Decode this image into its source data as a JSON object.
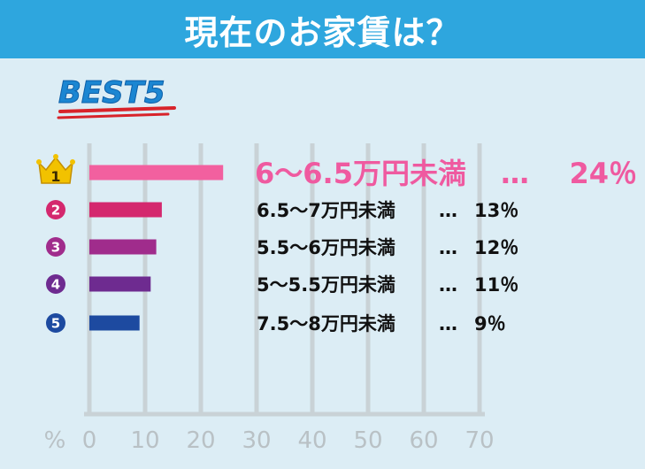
{
  "title": "現在のお家賃は？",
  "badge": "BEST5",
  "colors": {
    "header": "#2ea6de",
    "panel": "#dcedf5",
    "grid": "#c9d2d6",
    "badge_text": "#1b86d2",
    "badge_underline": "#d8232a",
    "crown": "#f2c200",
    "rank1_text": "#ef5aa0"
  },
  "chart_data": {
    "type": "bar",
    "orientation": "horizontal",
    "unit_label": "%",
    "xlim": [
      0,
      70
    ],
    "x_ticks": [
      0,
      10,
      20,
      30,
      40,
      50,
      60,
      70
    ],
    "grid": true,
    "categories": [
      "6～6.5万円未満",
      "6.5～7万円未満",
      "5.5～6万円未満",
      "5～5.5万円未満",
      "7.5～8万円未満"
    ],
    "values": [
      24,
      13,
      12,
      11,
      9
    ],
    "ranks": [
      "1",
      "2",
      "3",
      "4",
      "5"
    ],
    "bar_colors": [
      "#f2609f",
      "#d4286e",
      "#a02c8c",
      "#6e2b90",
      "#1d4aa0"
    ],
    "labels": [
      {
        "category": "6～6.5万円未満",
        "sep": "…",
        "value": "24％"
      },
      {
        "category": "6.5～7万円未満",
        "sep": "…",
        "value": "13％"
      },
      {
        "category": "5.5～6万円未満",
        "sep": "…",
        "value": "12％"
      },
      {
        "category": "5～5.5万円未満",
        "sep": "…",
        "value": "11％"
      },
      {
        "category": "7.5～8万円未満",
        "sep": "…",
        "value": "9％"
      }
    ]
  }
}
